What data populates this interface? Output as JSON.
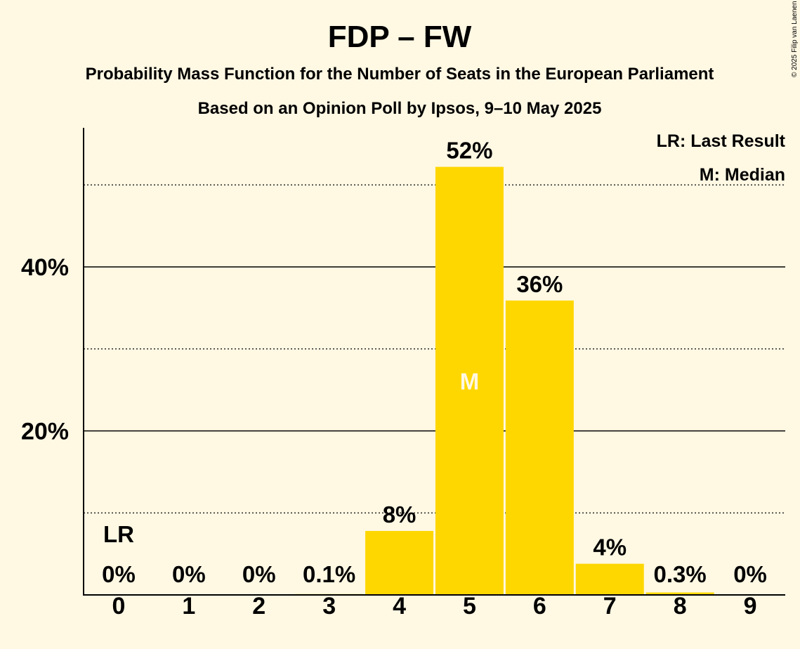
{
  "chart_data": {
    "type": "bar",
    "title": "FDP – FW",
    "subtitle": "Probability Mass Function for the Number of Seats in the European Parliament",
    "subtitle2": "Based on an Opinion Poll by Ipsos, 9–10 May 2025",
    "categories": [
      "0",
      "1",
      "2",
      "3",
      "4",
      "5",
      "6",
      "7",
      "8",
      "9"
    ],
    "values": [
      0,
      0,
      0,
      0.1,
      7.8,
      52.2,
      35.9,
      3.8,
      0.3,
      0
    ],
    "value_labels": [
      "0%",
      "0%",
      "0%",
      "0.1%",
      "8%",
      "52%",
      "36%",
      "4%",
      "0.3%",
      "0%"
    ],
    "ylim": [
      0,
      57
    ],
    "yticks": [
      {
        "value": 20,
        "label": "20%"
      },
      {
        "value": 40,
        "label": "40%"
      }
    ],
    "minor_gridlines": [
      10,
      30,
      50
    ],
    "last_result_index": 0,
    "last_result_marker": "LR",
    "median_index": 5,
    "median_marker": "M",
    "legend": [
      "LR: Last Result",
      "M: Median"
    ],
    "bar_color": "#FFD700",
    "background": "#FFF8E3",
    "copyright": "© 2025 Filip van Laenen"
  }
}
